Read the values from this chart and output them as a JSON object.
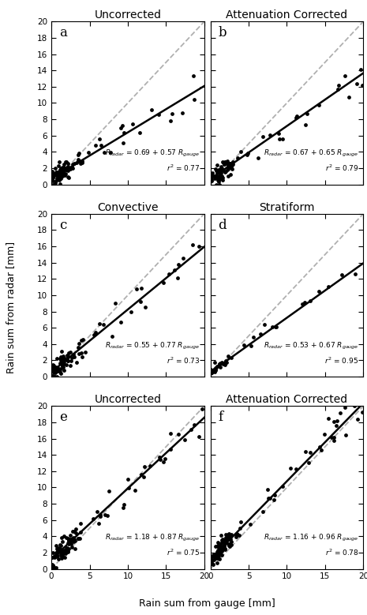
{
  "panels": [
    {
      "label": "a",
      "intercept": 0.69,
      "slope": 0.57,
      "r2": 0.77,
      "eq_parts": [
        "R",
        "radar",
        " = 0.69 + 0.57 R",
        "gauge"
      ],
      "r2_str": "r² = 0.77",
      "xlim": [
        0,
        20
      ],
      "ylim": [
        0,
        20
      ]
    },
    {
      "label": "b",
      "intercept": 0.67,
      "slope": 0.65,
      "r2": 0.79,
      "eq_parts": [
        "R",
        "radar",
        " = 0.67 + 0.65 R",
        "gauge"
      ],
      "r2_str": "r² = 0.79",
      "xlim": [
        0,
        20
      ],
      "ylim": [
        0,
        20
      ]
    },
    {
      "label": "c",
      "intercept": 0.55,
      "slope": 0.77,
      "r2": 0.73,
      "eq_parts": [
        "R",
        "radar",
        " = 0.55 + 0.77 R",
        "gauge"
      ],
      "r2_str": "r² = 0.73",
      "xlim": [
        0,
        20
      ],
      "ylim": [
        0,
        20
      ]
    },
    {
      "label": "d",
      "intercept": 0.53,
      "slope": 0.67,
      "r2": 0.95,
      "eq_parts": [
        "R",
        "radar",
        " = 0.53 + 0.67 R",
        "gauge"
      ],
      "r2_str": "r² = 0.95",
      "xlim": [
        0,
        20
      ],
      "ylim": [
        0,
        20
      ]
    },
    {
      "label": "e",
      "intercept": 1.18,
      "slope": 0.87,
      "r2": 0.75,
      "eq_parts": [
        "R",
        "radar",
        " = 1.18 + 0.87 R",
        "gauge"
      ],
      "r2_str": "r² = 0.75",
      "xlim": [
        0,
        20
      ],
      "ylim": [
        0,
        20
      ]
    },
    {
      "label": "f",
      "intercept": 1.16,
      "slope": 0.96,
      "r2": 0.78,
      "eq_parts": [
        "R",
        "radar",
        " = 1.16 + 0.96 R",
        "gauge"
      ],
      "r2_str": "r² = 0.78",
      "xlim": [
        0,
        20
      ],
      "ylim": [
        0,
        20
      ]
    }
  ],
  "row_titles": [
    [
      "Uncorrected",
      "Attenuation Corrected"
    ],
    [
      "Convective",
      "Stratiform"
    ],
    [
      "Uncorrected",
      "Attenuation Corrected"
    ]
  ],
  "ylabel": "Rain sum from radar [mm]",
  "xlabel": "Rain sum from gauge [mm]",
  "scatter_color": "black",
  "line_color": "black",
  "dashed_color": "#b0b0b0",
  "fig_bg": "white"
}
